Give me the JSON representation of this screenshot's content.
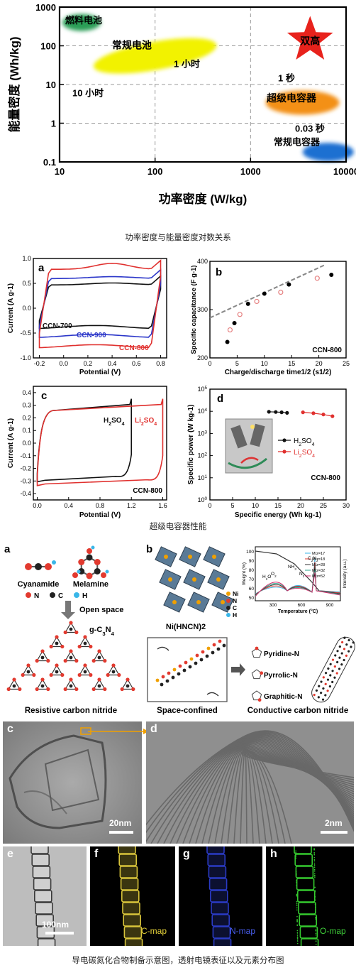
{
  "figure1": {
    "caption": "功率密度与能量密度对数关系",
    "chart_data": {
      "type": "scatter",
      "xlabel": "功率密度 (W/kg)",
      "ylabel": "能量密度 (Wh/kg)",
      "xscale": "log",
      "yscale": "log",
      "xlim": [
        10,
        10000
      ],
      "ylim": [
        0.1,
        1000
      ],
      "xticks": [
        "10",
        "100",
        "1000",
        "10000"
      ],
      "yticks": [
        "1000",
        "100",
        "10",
        "1",
        "0.1"
      ],
      "grid": true,
      "regions": [
        {
          "name": "燃料电池",
          "color": "#2a9d56"
        },
        {
          "name": "常规电池",
          "color": "#f2f200"
        },
        {
          "name": "超级电容器",
          "color": "#f39019"
        },
        {
          "name": "常规电容器",
          "color": "#1f6fd1"
        },
        {
          "name": "双高",
          "color": "#e8221c"
        }
      ],
      "annotations": [
        "1 小时",
        "10 小时",
        "1 秒",
        "0.03 秒"
      ]
    }
  },
  "figure2": {
    "caption": "超级电容器性能",
    "panels": [
      {
        "label": "a",
        "chart_data": {
          "type": "line",
          "xlabel": "Potential (V)",
          "ylabel": "Current (A g-1)",
          "xlim": [
            -0.25,
            0.85
          ],
          "ylim": [
            -1.0,
            1.0
          ],
          "xticks": [
            "-0.2",
            "0.0",
            "0.2",
            "0.4",
            "0.6",
            "0.8"
          ],
          "yticks": [
            "1.0",
            "0.5",
            "0.0",
            "-0.5",
            "-1.0"
          ],
          "series": [
            {
              "name": "CCN-700",
              "color": "#111111",
              "upper": 0.55,
              "lower": -0.42
            },
            {
              "name": "CCN-900",
              "color": "#2b36c9",
              "upper": 0.7,
              "lower": -0.62
            },
            {
              "name": "CCN-800",
              "color": "#e0302e",
              "upper": 0.92,
              "lower": -0.85
            }
          ]
        }
      },
      {
        "label": "b",
        "chart_data": {
          "type": "scatter",
          "xlabel": "Charge/discharge time1/2 (s1/2)",
          "ylabel": "Specific capacitance (F g-1)",
          "xlim": [
            0,
            25
          ],
          "ylim": [
            200,
            400
          ],
          "xticks": [
            "0",
            "5",
            "10",
            "15",
            "20",
            "25"
          ],
          "yticks": [
            "400",
            "300",
            "200"
          ],
          "note": "CCN-800",
          "series": [
            {
              "name": "filled",
              "x": [
                3.2,
                4.5,
                7.0,
                10.0,
                14.5,
                22.3
              ],
              "y": [
                233,
                272,
                312,
                333,
                352,
                372
              ]
            },
            {
              "name": "open",
              "x": [
                3.7,
                5.5,
                8.6,
                13.0,
                19.7
              ],
              "y": [
                258,
                290,
                317,
                336,
                365
              ]
            },
            {
              "name": "fit",
              "x": [
                0,
                21
              ],
              "y": [
                283,
                392
              ]
            }
          ]
        }
      },
      {
        "label": "c",
        "chart_data": {
          "type": "line",
          "xlabel": "Potential (V)",
          "ylabel": "Current (A g-1)",
          "xlim": [
            -0.05,
            1.65
          ],
          "ylim": [
            -0.45,
            0.45
          ],
          "xticks": [
            "0.0",
            "0.4",
            "0.8",
            "1.2",
            "1.6"
          ],
          "yticks": [
            "0.4",
            "0.3",
            "0.2",
            "0.1",
            "0.0",
            "-0.1",
            "-0.2",
            "-0.3",
            "-0.4"
          ],
          "note": "CCN-800",
          "series": [
            {
              "name": "H2SO4",
              "color": "#111111",
              "xmax": 1.2
            },
            {
              "name": "Li2SO4",
              "color": "#e0302e",
              "xmax": 1.6
            }
          ]
        }
      },
      {
        "label": "d",
        "chart_data": {
          "type": "line",
          "xlabel": "Specific energy (Wh kg-1)",
          "ylabel": "Specific power (W kg-1)",
          "yscale": "log",
          "xlim": [
            0,
            30
          ],
          "ylim": [
            1,
            100000
          ],
          "xticks": [
            "0",
            "5",
            "10",
            "15",
            "20",
            "25",
            "30"
          ],
          "yticks": [
            "105",
            "104",
            "103",
            "102",
            "101",
            "100"
          ],
          "note": "CCN-800",
          "series": [
            {
              "name": "H2SO4",
              "color": "#111111",
              "x": [
                13.0,
                14.5,
                15.8,
                17.0
              ],
              "y": [
                9500,
                9300,
                9000,
                8500
              ]
            },
            {
              "name": "Li2SO4",
              "color": "#e0302e",
              "x": [
                20.5,
                22.8,
                25.0,
                27.0
              ],
              "y": [
                9000,
                8200,
                7200,
                6000
              ]
            }
          ]
        }
      }
    ]
  },
  "figure3": {
    "caption": "导电碳氮化合物制备示意图，透射电镜表征以及元素分布图",
    "panel_a": {
      "label": "a",
      "molecules": [
        "Cyanamide",
        "Melamine"
      ],
      "legend": [
        "N",
        "C",
        "H"
      ],
      "arrow_label": "Open space",
      "product": "g-C3N4",
      "title": "Resistive carbon nitride"
    },
    "panel_b": {
      "label": "b",
      "crystal": "Ni(HNCN)2",
      "legend": [
        "Ni",
        "N",
        "C",
        "H"
      ],
      "tga": {
        "ylabel": "Weight (%)",
        "xlabel": "Temperature (°C)",
        "y2label": "Intensity (a.u.)",
        "yticks": [
          "100",
          "90",
          "80",
          "70",
          "60",
          "50"
        ],
        "xticks": [
          "300",
          "600",
          "900"
        ],
        "species": [
          "H2O",
          "O2",
          "NH3",
          "N2",
          "C2N2"
        ],
        "legend": [
          "M/z=17",
          "M/z=18",
          "M/z=28",
          "M/z=32",
          "M/z=52"
        ]
      },
      "box_label": "Space-confined",
      "n_types": [
        "Pyridine-N",
        "Pyrrolic-N",
        "Graphitic-N"
      ],
      "title": "Conductive carbon nitride"
    },
    "tem": [
      {
        "label": "c",
        "scale": "20nm"
      },
      {
        "label": "d",
        "scale": "2nm"
      },
      {
        "label": "e",
        "scale": "100nm"
      },
      {
        "label": "f",
        "map": "C-map",
        "color": "#e6d33a"
      },
      {
        "label": "g",
        "map": "N-map",
        "color": "#3a4fe6"
      },
      {
        "label": "h",
        "map": "O-map",
        "color": "#3fcf3a"
      }
    ]
  }
}
